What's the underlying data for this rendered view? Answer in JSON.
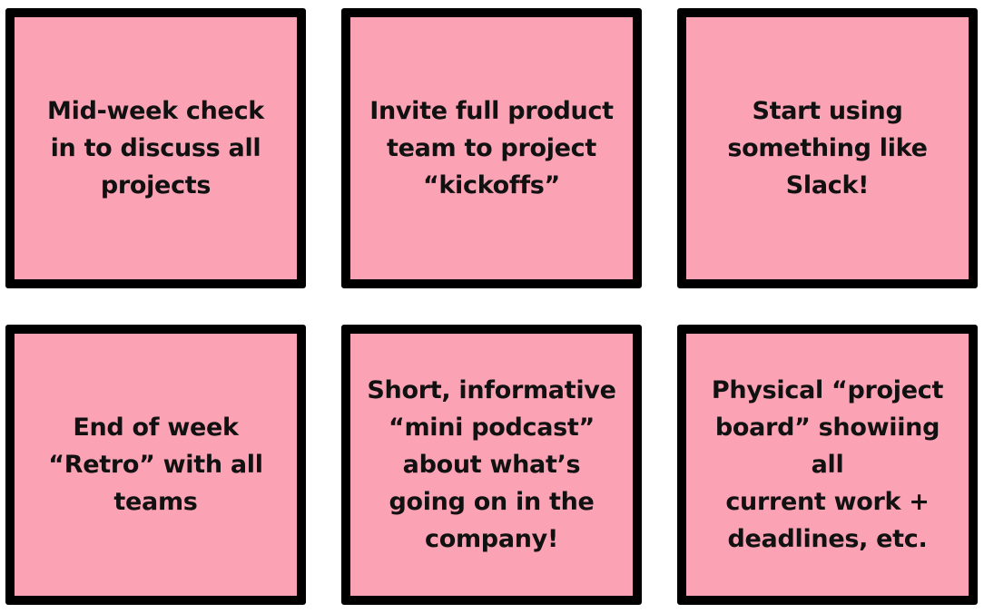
{
  "colors": {
    "note_fill": "#fba3b5",
    "note_border": "#000000",
    "text": "#111111"
  },
  "notes": [
    {
      "text": "Mid-week check\nin to discuss all\nprojects"
    },
    {
      "text": "Invite full product\nteam to project\n“kickoffs”"
    },
    {
      "text": "Start using\nsomething like\nSlack!"
    },
    {
      "text": "End of week\n“Retro” with all\nteams"
    },
    {
      "text": "Short, informative\n“mini podcast”\nabout what’s\ngoing on in the\ncompany!"
    },
    {
      "text": "Physical “project\nboard” showiing all\ncurrent work +\ndeadlines, etc."
    }
  ]
}
